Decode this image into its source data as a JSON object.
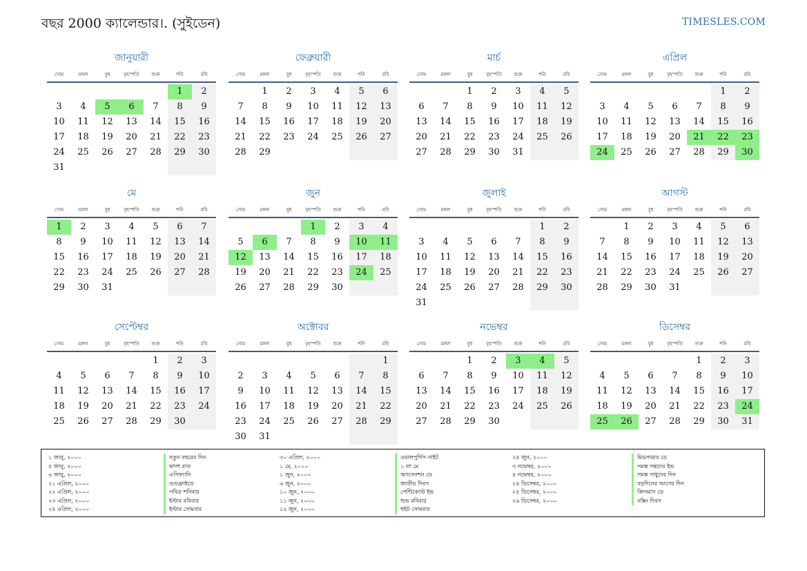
{
  "header": {
    "title": "বছর 2000 ক্যালেন্ডার।. (সুইডেন)",
    "site": "TIMESLES.COM"
  },
  "weekdays": [
    "সোম",
    "মঙ্গল",
    "বুধ",
    "বৃহস্পতি",
    "শুক্র",
    "শনি",
    "রবি"
  ],
  "months": [
    {
      "name": "জানুয়ারী",
      "offset": 5,
      "days": 31,
      "holidays": [
        1,
        5,
        6
      ]
    },
    {
      "name": "ফেব্রুয়ারী",
      "offset": 1,
      "days": 29,
      "holidays": []
    },
    {
      "name": "মার্চ",
      "offset": 2,
      "days": 31,
      "holidays": []
    },
    {
      "name": "এপ্রিল",
      "offset": 5,
      "days": 30,
      "holidays": [
        21,
        22,
        23,
        24,
        30
      ]
    },
    {
      "name": "মে",
      "offset": 0,
      "days": 31,
      "holidays": [
        1
      ]
    },
    {
      "name": "জুন",
      "offset": 3,
      "days": 30,
      "holidays": [
        1,
        6,
        10,
        11,
        12,
        24
      ]
    },
    {
      "name": "জুলাই",
      "offset": 5,
      "days": 31,
      "holidays": []
    },
    {
      "name": "আগস্ট",
      "offset": 1,
      "days": 31,
      "holidays": []
    },
    {
      "name": "সেপ্টেম্বর",
      "offset": 4,
      "days": 30,
      "holidays": []
    },
    {
      "name": "অক্টোবর",
      "offset": 6,
      "days": 31,
      "holidays": []
    },
    {
      "name": "নভেম্বর",
      "offset": 2,
      "days": 30,
      "holidays": [
        3,
        4
      ]
    },
    {
      "name": "ডিসেম্বর",
      "offset": 4,
      "days": 31,
      "holidays": [
        24,
        25,
        26
      ]
    }
  ],
  "holidays_list": [
    {
      "date": "১ জানু, ২০০০",
      "name": "নতুন বছরের দিন"
    },
    {
      "date": "৫ জানু, ২০০০",
      "name": "দ্বাদশ রাত"
    },
    {
      "date": "৬ জানু, ২০০০",
      "name": "এপিফ্যানি"
    },
    {
      "date": "২১ এপ্রিল, ২০০০",
      "name": "গুডফ্রাইডে"
    },
    {
      "date": "২২ এপ্রিল, ২০০০",
      "name": "পবিত্র শনিবার"
    },
    {
      "date": "২৩ এপ্রিল, ২০০০",
      "name": "ইস্টার রবিবার"
    },
    {
      "date": "২৪ এপ্রিল, ২০০০",
      "name": "ইস্টার সোমবার"
    },
    {
      "date": "৩০ এপ্রিল, ২০০০",
      "name": "ওয়ালপুর্গিস নাইট"
    },
    {
      "date": "১ মে, ২০০০",
      "name": "১ লা মে"
    },
    {
      "date": "১ জুন, ২০০০",
      "name": "অ্যাসেনশন ডে"
    },
    {
      "date": "৬ জুন, ২০০০",
      "name": "জাতীয় দিবস"
    },
    {
      "date": "১০ জুন, ২০০০",
      "name": "পেন্টিকোস্ট ইভ"
    },
    {
      "date": "১১ জুন, ২০০০",
      "name": "শুভ রবিবার"
    },
    {
      "date": "১২ জুন, ২০০০",
      "name": "হুইট সোমবার"
    },
    {
      "date": "২৪ জুন, ২০০০",
      "name": "মিডসামার ডে"
    },
    {
      "date": "৩ নভেম্বর, ২০০০",
      "name": "সমস্ত সন্তদের ইভ"
    },
    {
      "date": "৪ নভেম্বর, ২০০০",
      "name": "সমস্ত সাধুদের দিন"
    },
    {
      "date": "২৪ ডিসেম্বর, ২০০০",
      "name": "বড়দিনের আগের দিন"
    },
    {
      "date": "২৫ ডিসেম্বর, ২০০০",
      "name": "ক্রিসমাস ডে"
    },
    {
      "date": "২৬ ডিসেম্বর, ২০০০",
      "name": "বক্সিং দিবস"
    }
  ]
}
